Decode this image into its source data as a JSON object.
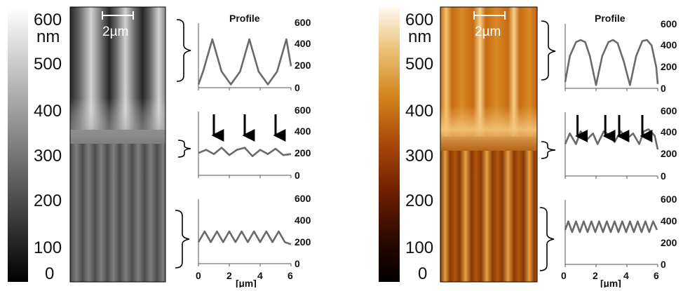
{
  "colorbar": {
    "ticks": [
      "600",
      "500",
      "400",
      "300",
      "200",
      "100",
      "0"
    ],
    "unit": "nm",
    "colors": {
      "gray_stops": [
        "#000000",
        "#ffffff"
      ],
      "warm_stops": [
        "#000000",
        "#2a0800",
        "#6b1e02",
        "#a8470a",
        "#d4861e",
        "#ecc47c",
        "#fff9ef"
      ]
    }
  },
  "scale_bar": {
    "label": "2µm"
  },
  "profile": {
    "title": "Profile",
    "y_ticks": [
      "600",
      "400",
      "200",
      "0"
    ],
    "x_ticks": [
      "0",
      "2",
      "4",
      "6"
    ],
    "x_unit": "[µm]"
  },
  "chart_data": [
    {
      "type": "line",
      "panel": "left",
      "title": "Profile",
      "xlabel": "[µm]",
      "xlim": [
        0,
        6
      ],
      "subplots": [
        {
          "ylim": [
            0,
            600
          ],
          "series": [
            {
              "x": [
                0,
                0.3,
                0.9,
                1.5,
                2.1,
                2.7,
                3.3,
                3.9,
                4.5,
                5.1,
                5.7,
                6.0
              ],
              "values": [
                30,
                150,
                450,
                150,
                30,
                150,
                450,
                150,
                30,
                150,
                450,
                200
              ]
            }
          ]
        },
        {
          "ylim": [
            0,
            600
          ],
          "series": [
            {
              "x": [
                0,
                0.5,
                1.0,
                1.5,
                2.0,
                2.5,
                3.0,
                3.5,
                4.0,
                4.5,
                5.0,
                5.5,
                6.0
              ],
              "values": [
                210,
                240,
                200,
                260,
                190,
                240,
                260,
                180,
                240,
                200,
                250,
                190,
                200
              ]
            }
          ],
          "arrows_x": [
            1.0,
            3.0,
            5.0
          ]
        },
        {
          "ylim": [
            0,
            600
          ],
          "series": [
            {
              "x": [
                0,
                0.4,
                0.8,
                1.2,
                1.6,
                2.0,
                2.4,
                2.8,
                3.2,
                3.6,
                4.0,
                4.4,
                4.8,
                5.2,
                5.6,
                6.0
              ],
              "values": [
                200,
                300,
                200,
                300,
                200,
                300,
                200,
                300,
                200,
                300,
                200,
                300,
                200,
                300,
                200,
                180
              ]
            }
          ]
        }
      ]
    },
    {
      "type": "line",
      "panel": "right",
      "title": "Profile",
      "xlabel": "[µm]",
      "xlim": [
        0,
        6
      ],
      "subplots": [
        {
          "ylim": [
            0,
            600
          ],
          "series": [
            {
              "x": [
                0,
                0.3,
                0.7,
                1.0,
                1.3,
                1.6,
                2.0,
                2.4,
                2.8,
                3.1,
                3.4,
                3.8,
                4.2,
                4.6,
                5.0,
                5.3,
                5.6,
                5.9,
                6.0
              ],
              "values": [
                60,
                300,
                430,
                450,
                430,
                300,
                30,
                300,
                430,
                450,
                420,
                250,
                30,
                300,
                440,
                450,
                400,
                200,
                40
              ]
            }
          ]
        },
        {
          "ylim": [
            0,
            600
          ],
          "series": [
            {
              "x": [
                0,
                0.3,
                0.7,
                1.0,
                1.4,
                1.8,
                2.1,
                2.5,
                2.9,
                3.2,
                3.6,
                4.0,
                4.4,
                4.8,
                5.1,
                5.4,
                5.8,
                6.0
              ],
              "values": [
                300,
                400,
                300,
                420,
                340,
                400,
                300,
                420,
                380,
                320,
                420,
                350,
                400,
                300,
                420,
                440,
                380,
                250
              ]
            }
          ],
          "arrows_x": [
            0.8,
            2.6,
            3.5,
            5.0
          ]
        },
        {
          "ylim": [
            0,
            600
          ],
          "series": [
            {
              "x": [
                0,
                0.2,
                0.45,
                0.7,
                0.95,
                1.2,
                1.45,
                1.7,
                1.95,
                2.2,
                2.45,
                2.7,
                2.95,
                3.2,
                3.45,
                3.7,
                3.95,
                4.2,
                4.45,
                4.7,
                4.95,
                5.2,
                5.45,
                5.7,
                5.95
              ],
              "values": [
                320,
                400,
                300,
                400,
                300,
                400,
                300,
                400,
                300,
                400,
                300,
                400,
                300,
                400,
                300,
                400,
                300,
                400,
                300,
                400,
                300,
                400,
                300,
                400,
                320
              ]
            }
          ]
        }
      ]
    }
  ]
}
